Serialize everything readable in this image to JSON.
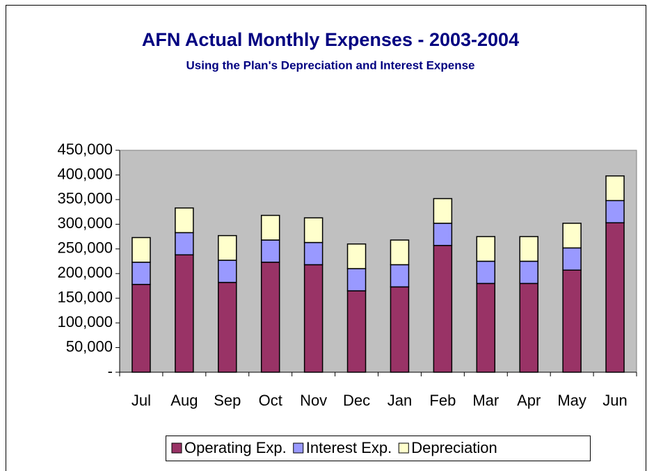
{
  "chart_data": {
    "type": "stacked_bar",
    "title": "AFN Actual Monthly Expenses - 2003-2004",
    "subtitle": "Using the Plan's Depreciation and Interest Expense",
    "categories": [
      "Jul",
      "Aug",
      "Sep",
      "Oct",
      "Nov",
      "Dec",
      "Jan",
      "Feb",
      "Mar",
      "Apr",
      "May",
      "Jun"
    ],
    "series": [
      {
        "name": "Operating Exp.",
        "color": "#993366",
        "values": [
          178000,
          238000,
          182000,
          223000,
          218000,
          165000,
          173000,
          257000,
          180000,
          180000,
          207000,
          303000
        ]
      },
      {
        "name": "Interest Exp.",
        "color": "#9999ff",
        "values": [
          45000,
          45000,
          45000,
          45000,
          45000,
          45000,
          45000,
          45000,
          45000,
          45000,
          45000,
          45000
        ]
      },
      {
        "name": "Depreciation",
        "color": "#ffffcc",
        "values": [
          50000,
          50000,
          50000,
          50000,
          50000,
          50000,
          50000,
          50000,
          50000,
          50000,
          50000,
          50000
        ]
      }
    ],
    "ylim": [
      0,
      450000
    ],
    "yticks": [
      {
        "value": 0,
        "label": "-"
      },
      {
        "value": 50000,
        "label": "50,000"
      },
      {
        "value": 100000,
        "label": "100,000"
      },
      {
        "value": 150000,
        "label": "150,000"
      },
      {
        "value": 200000,
        "label": "200,000"
      },
      {
        "value": 250000,
        "label": "250,000"
      },
      {
        "value": 300000,
        "label": "300,000"
      },
      {
        "value": 350000,
        "label": "350,000"
      },
      {
        "value": 400000,
        "label": "400,000"
      },
      {
        "value": 450000,
        "label": "450,000"
      }
    ],
    "legend": "bottom"
  }
}
